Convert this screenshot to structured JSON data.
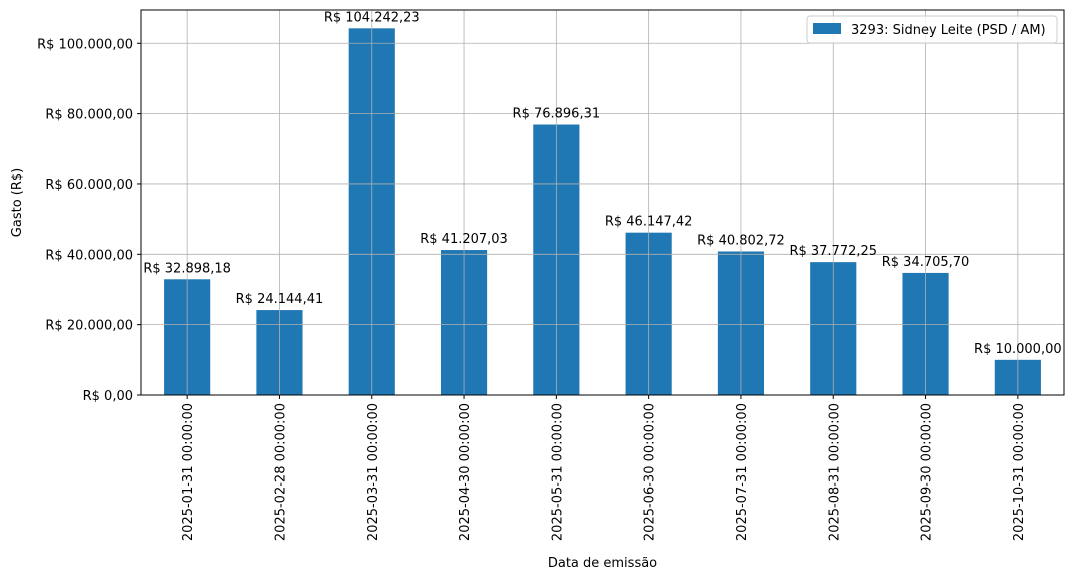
{
  "chart_data": {
    "type": "bar",
    "categories": [
      "2025-01-31 00:00:00",
      "2025-02-28 00:00:00",
      "2025-03-31 00:00:00",
      "2025-04-30 00:00:00",
      "2025-05-31 00:00:00",
      "2025-06-30 00:00:00",
      "2025-07-31 00:00:00",
      "2025-08-31 00:00:00",
      "2025-09-30 00:00:00",
      "2025-10-31 00:00:00"
    ],
    "series": [
      {
        "name": "3293: Sidney Leite (PSD / AM)",
        "values": [
          32898.18,
          24144.41,
          104242.23,
          41207.03,
          76896.31,
          46147.42,
          40802.72,
          37772.25,
          34705.7,
          10000.0
        ],
        "data_labels": [
          "R$ 32.898,18",
          "R$ 24.144,41",
          "R$ 104.242,23",
          "R$ 41.207,03",
          "R$ 76.896,31",
          "R$ 46.147,42",
          "R$ 40.802,72",
          "R$ 37.772,25",
          "R$ 34.705,70",
          "R$ 10.000,00"
        ]
      }
    ],
    "title": "",
    "xlabel": "Data de emissão",
    "ylabel": "Gasto (R$)",
    "ylim": [
      0,
      109454.34
    ],
    "yticks": [
      0,
      20000,
      40000,
      60000,
      80000,
      100000
    ],
    "ytick_labels": [
      "R$ 0,00",
      "R$ 20.000,00",
      "R$ 40.000,00",
      "R$ 60.000,00",
      "R$ 80.000,00",
      "R$ 100.000,00"
    ],
    "grid": true,
    "legend_position": "upper right",
    "bar_color": "#1f77b4",
    "grid_color": "#b0b0b0"
  }
}
